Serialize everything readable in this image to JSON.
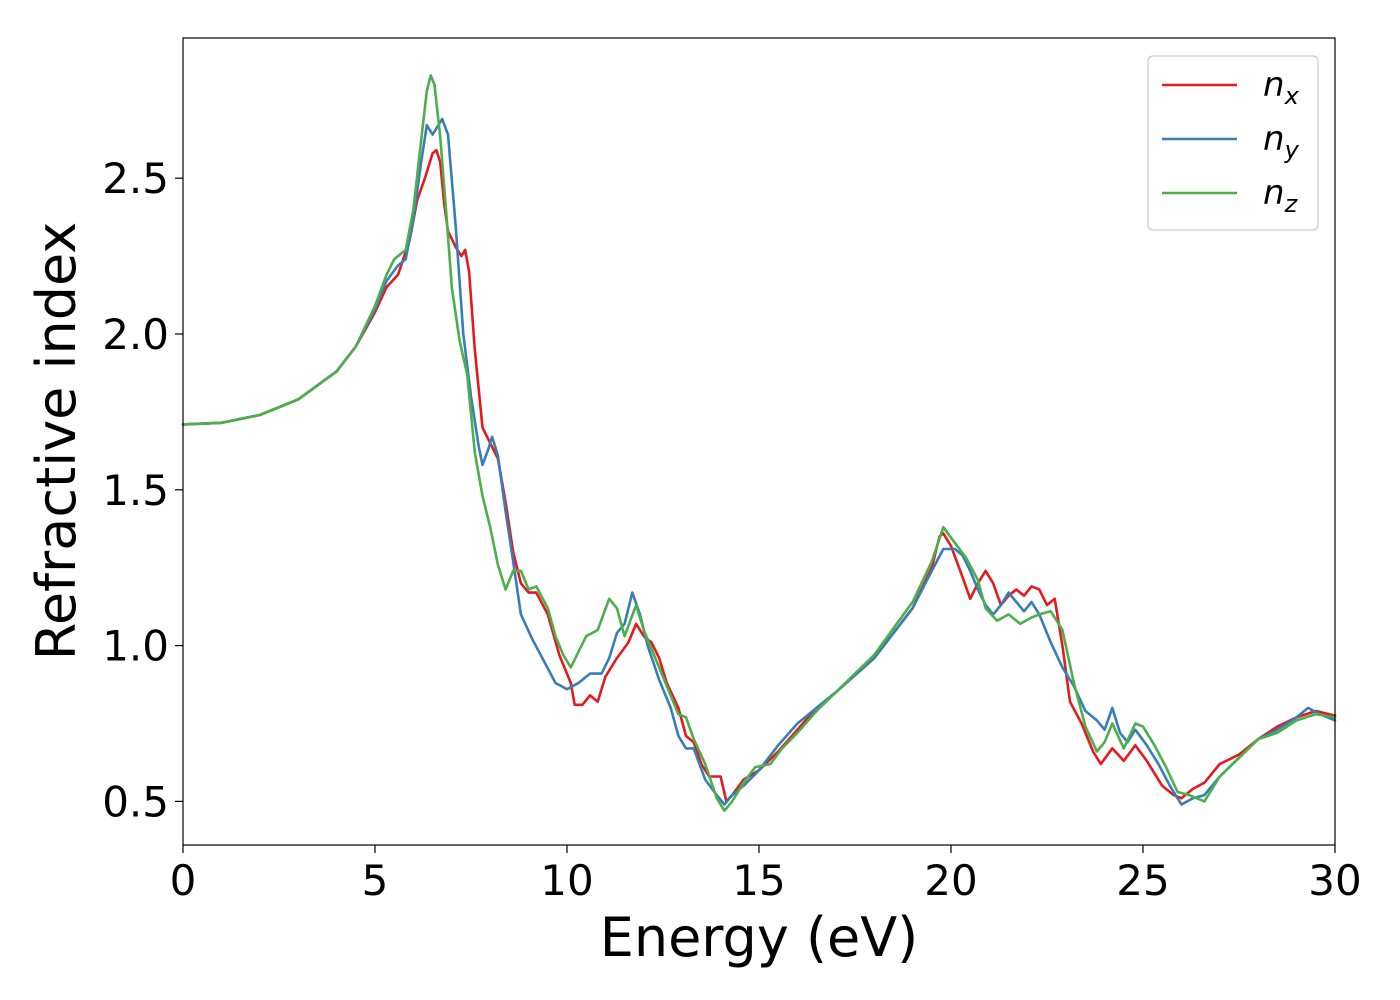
{
  "chart_data": {
    "type": "line",
    "xlabel": "Energy (eV)",
    "ylabel": "Refractive index",
    "xlim": [
      0,
      30
    ],
    "ylim": [
      0.36,
      2.95
    ],
    "xticks": [
      0,
      5,
      10,
      15,
      20,
      25,
      30
    ],
    "xtick_labels": [
      "0",
      "5",
      "10",
      "15",
      "20",
      "25",
      "30"
    ],
    "yticks": [
      0.5,
      1.0,
      1.5,
      2.0,
      2.5
    ],
    "ytick_labels": [
      "0.5",
      "1.0",
      "1.5",
      "2.0",
      "2.5"
    ],
    "grid": false,
    "legend_position": "top-right",
    "series": [
      {
        "name": "n_x",
        "label_base": "n",
        "label_sub": "x",
        "color": "#e41a1c",
        "points": [
          [
            0,
            1.71
          ],
          [
            1,
            1.715
          ],
          [
            2,
            1.74
          ],
          [
            3,
            1.79
          ],
          [
            4,
            1.88
          ],
          [
            4.5,
            1.96
          ],
          [
            5,
            2.07
          ],
          [
            5.3,
            2.15
          ],
          [
            5.6,
            2.19
          ],
          [
            5.9,
            2.3
          ],
          [
            6.1,
            2.43
          ],
          [
            6.3,
            2.5
          ],
          [
            6.5,
            2.58
          ],
          [
            6.6,
            2.59
          ],
          [
            6.7,
            2.55
          ],
          [
            6.8,
            2.42
          ],
          [
            6.9,
            2.33
          ],
          [
            7.1,
            2.28
          ],
          [
            7.25,
            2.25
          ],
          [
            7.35,
            2.27
          ],
          [
            7.45,
            2.2
          ],
          [
            7.6,
            1.95
          ],
          [
            7.8,
            1.7
          ],
          [
            8.0,
            1.65
          ],
          [
            8.2,
            1.6
          ],
          [
            8.4,
            1.46
          ],
          [
            8.6,
            1.3
          ],
          [
            8.8,
            1.2
          ],
          [
            9.0,
            1.17
          ],
          [
            9.2,
            1.17
          ],
          [
            9.5,
            1.1
          ],
          [
            9.8,
            0.97
          ],
          [
            10.1,
            0.88
          ],
          [
            10.2,
            0.81
          ],
          [
            10.4,
            0.81
          ],
          [
            10.6,
            0.84
          ],
          [
            10.8,
            0.82
          ],
          [
            11.0,
            0.9
          ],
          [
            11.3,
            0.96
          ],
          [
            11.6,
            1.01
          ],
          [
            11.8,
            1.07
          ],
          [
            12.0,
            1.03
          ],
          [
            12.2,
            1.01
          ],
          [
            12.4,
            0.96
          ],
          [
            12.6,
            0.88
          ],
          [
            12.9,
            0.8
          ],
          [
            13.1,
            0.71
          ],
          [
            13.3,
            0.69
          ],
          [
            13.5,
            0.62
          ],
          [
            13.7,
            0.58
          ],
          [
            14.0,
            0.58
          ],
          [
            14.15,
            0.5
          ],
          [
            14.3,
            0.52
          ],
          [
            14.6,
            0.57
          ],
          [
            15.0,
            0.6
          ],
          [
            15.5,
            0.66
          ],
          [
            16.0,
            0.73
          ],
          [
            16.5,
            0.8
          ],
          [
            17,
            0.85
          ],
          [
            18,
            0.96
          ],
          [
            19,
            1.12
          ],
          [
            19.5,
            1.25
          ],
          [
            19.7,
            1.35
          ],
          [
            19.8,
            1.36
          ],
          [
            20.0,
            1.32
          ],
          [
            20.3,
            1.22
          ],
          [
            20.5,
            1.15
          ],
          [
            20.7,
            1.2
          ],
          [
            20.9,
            1.24
          ],
          [
            21.1,
            1.2
          ],
          [
            21.3,
            1.13
          ],
          [
            21.5,
            1.16
          ],
          [
            21.7,
            1.18
          ],
          [
            21.9,
            1.16
          ],
          [
            22.1,
            1.19
          ],
          [
            22.3,
            1.18
          ],
          [
            22.5,
            1.13
          ],
          [
            22.7,
            1.15
          ],
          [
            22.9,
            1.0
          ],
          [
            23.1,
            0.82
          ],
          [
            23.4,
            0.75
          ],
          [
            23.7,
            0.66
          ],
          [
            23.9,
            0.62
          ],
          [
            24.2,
            0.67
          ],
          [
            24.5,
            0.63
          ],
          [
            24.8,
            0.68
          ],
          [
            25.1,
            0.63
          ],
          [
            25.5,
            0.55
          ],
          [
            25.8,
            0.52
          ],
          [
            26.0,
            0.51
          ],
          [
            26.3,
            0.54
          ],
          [
            26.6,
            0.56
          ],
          [
            27.0,
            0.62
          ],
          [
            27.5,
            0.65
          ],
          [
            28,
            0.7
          ],
          [
            28.5,
            0.74
          ],
          [
            29,
            0.77
          ],
          [
            29.5,
            0.79
          ],
          [
            30,
            0.775
          ]
        ]
      },
      {
        "name": "n_y",
        "label_base": "n",
        "label_sub": "y",
        "color": "#377eb8",
        "points": [
          [
            0,
            1.71
          ],
          [
            1,
            1.715
          ],
          [
            2,
            1.74
          ],
          [
            3,
            1.79
          ],
          [
            4,
            1.88
          ],
          [
            4.5,
            1.96
          ],
          [
            5,
            2.08
          ],
          [
            5.3,
            2.17
          ],
          [
            5.6,
            2.22
          ],
          [
            5.8,
            2.24
          ],
          [
            6.0,
            2.37
          ],
          [
            6.2,
            2.55
          ],
          [
            6.35,
            2.67
          ],
          [
            6.5,
            2.64
          ],
          [
            6.6,
            2.66
          ],
          [
            6.75,
            2.69
          ],
          [
            6.9,
            2.64
          ],
          [
            7.1,
            2.35
          ],
          [
            7.3,
            2.0
          ],
          [
            7.5,
            1.8
          ],
          [
            7.7,
            1.64
          ],
          [
            7.8,
            1.58
          ],
          [
            7.95,
            1.63
          ],
          [
            8.05,
            1.67
          ],
          [
            8.2,
            1.61
          ],
          [
            8.4,
            1.43
          ],
          [
            8.6,
            1.27
          ],
          [
            8.8,
            1.1
          ],
          [
            9.1,
            1.02
          ],
          [
            9.4,
            0.95
          ],
          [
            9.7,
            0.88
          ],
          [
            10.0,
            0.86
          ],
          [
            10.3,
            0.88
          ],
          [
            10.6,
            0.91
          ],
          [
            10.9,
            0.91
          ],
          [
            11.1,
            0.96
          ],
          [
            11.3,
            1.04
          ],
          [
            11.5,
            1.07
          ],
          [
            11.7,
            1.17
          ],
          [
            11.9,
            1.1
          ],
          [
            12.1,
            1.0
          ],
          [
            12.4,
            0.89
          ],
          [
            12.7,
            0.8
          ],
          [
            12.9,
            0.71
          ],
          [
            13.1,
            0.67
          ],
          [
            13.3,
            0.67
          ],
          [
            13.6,
            0.57
          ],
          [
            13.9,
            0.52
          ],
          [
            14.1,
            0.49
          ],
          [
            14.3,
            0.52
          ],
          [
            14.6,
            0.55
          ],
          [
            15.0,
            0.6
          ],
          [
            15.5,
            0.68
          ],
          [
            16.0,
            0.75
          ],
          [
            16.5,
            0.8
          ],
          [
            17,
            0.85
          ],
          [
            18,
            0.96
          ],
          [
            19,
            1.12
          ],
          [
            19.5,
            1.24
          ],
          [
            19.8,
            1.31
          ],
          [
            20.1,
            1.31
          ],
          [
            20.3,
            1.29
          ],
          [
            20.5,
            1.24
          ],
          [
            20.7,
            1.18
          ],
          [
            20.9,
            1.13
          ],
          [
            21.1,
            1.1
          ],
          [
            21.3,
            1.13
          ],
          [
            21.5,
            1.17
          ],
          [
            21.7,
            1.14
          ],
          [
            21.9,
            1.11
          ],
          [
            22.1,
            1.14
          ],
          [
            22.3,
            1.1
          ],
          [
            22.6,
            1.01
          ],
          [
            22.9,
            0.93
          ],
          [
            23.2,
            0.87
          ],
          [
            23.5,
            0.79
          ],
          [
            23.8,
            0.76
          ],
          [
            24.0,
            0.73
          ],
          [
            24.2,
            0.8
          ],
          [
            24.4,
            0.72
          ],
          [
            24.6,
            0.69
          ],
          [
            24.8,
            0.73
          ],
          [
            25.1,
            0.68
          ],
          [
            25.4,
            0.62
          ],
          [
            25.7,
            0.55
          ],
          [
            26.0,
            0.49
          ],
          [
            26.3,
            0.51
          ],
          [
            26.6,
            0.52
          ],
          [
            27.0,
            0.58
          ],
          [
            27.5,
            0.64
          ],
          [
            28,
            0.7
          ],
          [
            28.5,
            0.73
          ],
          [
            29,
            0.77
          ],
          [
            29.3,
            0.8
          ],
          [
            29.6,
            0.78
          ],
          [
            30,
            0.76
          ]
        ]
      },
      {
        "name": "n_z",
        "label_base": "n",
        "label_sub": "z",
        "color": "#4daf4a",
        "points": [
          [
            0,
            1.71
          ],
          [
            1,
            1.715
          ],
          [
            2,
            1.74
          ],
          [
            3,
            1.79
          ],
          [
            4,
            1.88
          ],
          [
            4.5,
            1.96
          ],
          [
            5,
            2.09
          ],
          [
            5.3,
            2.19
          ],
          [
            5.5,
            2.24
          ],
          [
            5.8,
            2.27
          ],
          [
            6.0,
            2.4
          ],
          [
            6.2,
            2.62
          ],
          [
            6.35,
            2.78
          ],
          [
            6.45,
            2.83
          ],
          [
            6.55,
            2.8
          ],
          [
            6.7,
            2.63
          ],
          [
            6.85,
            2.4
          ],
          [
            7.0,
            2.15
          ],
          [
            7.2,
            1.98
          ],
          [
            7.4,
            1.87
          ],
          [
            7.6,
            1.62
          ],
          [
            7.8,
            1.48
          ],
          [
            8.0,
            1.38
          ],
          [
            8.2,
            1.26
          ],
          [
            8.4,
            1.18
          ],
          [
            8.6,
            1.24
          ],
          [
            8.8,
            1.24
          ],
          [
            9.0,
            1.18
          ],
          [
            9.2,
            1.19
          ],
          [
            9.5,
            1.12
          ],
          [
            9.7,
            1.03
          ],
          [
            9.9,
            0.97
          ],
          [
            10.1,
            0.93
          ],
          [
            10.3,
            0.98
          ],
          [
            10.5,
            1.03
          ],
          [
            10.8,
            1.05
          ],
          [
            11.1,
            1.15
          ],
          [
            11.3,
            1.12
          ],
          [
            11.5,
            1.03
          ],
          [
            11.8,
            1.13
          ],
          [
            12.0,
            1.05
          ],
          [
            12.3,
            0.96
          ],
          [
            12.6,
            0.87
          ],
          [
            12.9,
            0.78
          ],
          [
            13.1,
            0.77
          ],
          [
            13.3,
            0.7
          ],
          [
            13.6,
            0.62
          ],
          [
            13.9,
            0.51
          ],
          [
            14.1,
            0.47
          ],
          [
            14.3,
            0.5
          ],
          [
            14.6,
            0.56
          ],
          [
            14.9,
            0.61
          ],
          [
            15.3,
            0.62
          ],
          [
            15.6,
            0.67
          ],
          [
            16.0,
            0.72
          ],
          [
            16.5,
            0.79
          ],
          [
            17,
            0.85
          ],
          [
            18,
            0.97
          ],
          [
            19,
            1.14
          ],
          [
            19.5,
            1.27
          ],
          [
            19.8,
            1.38
          ],
          [
            20.1,
            1.33
          ],
          [
            20.4,
            1.28
          ],
          [
            20.7,
            1.21
          ],
          [
            20.9,
            1.12
          ],
          [
            21.2,
            1.08
          ],
          [
            21.5,
            1.1
          ],
          [
            21.8,
            1.07
          ],
          [
            22.1,
            1.09
          ],
          [
            22.3,
            1.1
          ],
          [
            22.6,
            1.11
          ],
          [
            22.9,
            1.05
          ],
          [
            23.2,
            0.88
          ],
          [
            23.5,
            0.74
          ],
          [
            23.8,
            0.66
          ],
          [
            24.0,
            0.69
          ],
          [
            24.2,
            0.75
          ],
          [
            24.5,
            0.67
          ],
          [
            24.8,
            0.75
          ],
          [
            25.0,
            0.74
          ],
          [
            25.3,
            0.68
          ],
          [
            25.6,
            0.61
          ],
          [
            25.9,
            0.53
          ],
          [
            26.2,
            0.52
          ],
          [
            26.6,
            0.5
          ],
          [
            27.0,
            0.58
          ],
          [
            27.5,
            0.64
          ],
          [
            28,
            0.7
          ],
          [
            28.5,
            0.72
          ],
          [
            29,
            0.76
          ],
          [
            29.5,
            0.78
          ],
          [
            30,
            0.77
          ]
        ]
      }
    ]
  }
}
